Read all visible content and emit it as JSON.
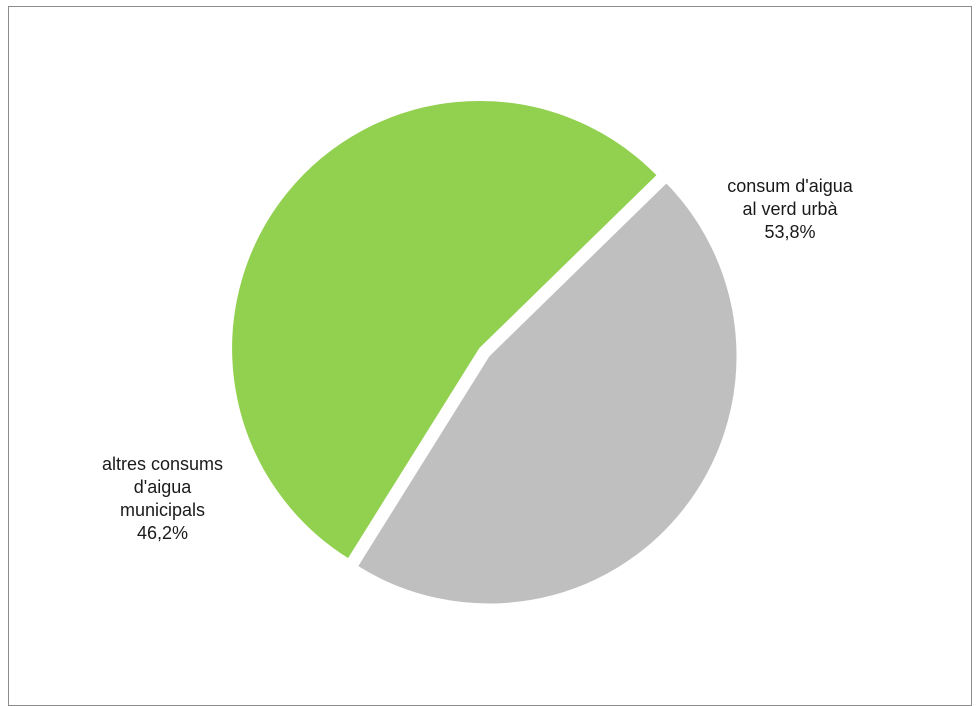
{
  "chart_data": {
    "type": "pie",
    "title": "",
    "legend": "none",
    "slices": [
      {
        "lines": [
          "consum d'aigua",
          "al verd urbà"
        ],
        "value": 53.8,
        "value_label": "53,8%",
        "color": "#92d050",
        "exploded": true
      },
      {
        "lines": [
          "altres consums",
          "d'aigua",
          "municipals"
        ],
        "value": 46.2,
        "value_label": "46,2%",
        "color": "#bfbfbf",
        "exploded": false
      }
    ]
  }
}
